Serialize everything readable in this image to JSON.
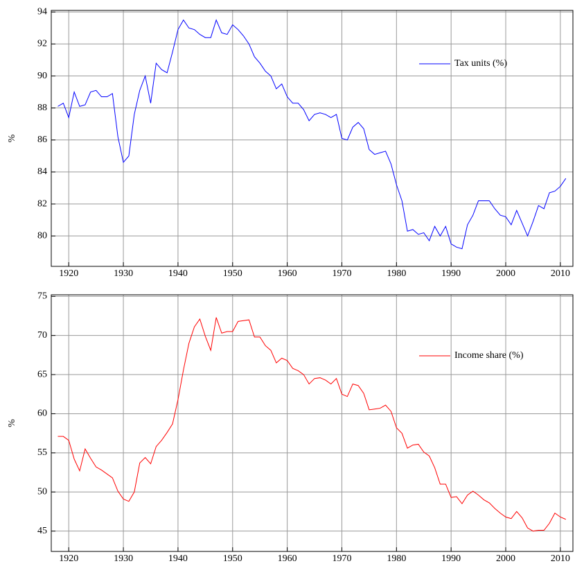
{
  "chart_data": [
    {
      "type": "line",
      "ylabel": "%",
      "x": [
        1918,
        1919,
        1920,
        1921,
        1922,
        1923,
        1924,
        1925,
        1926,
        1927,
        1928,
        1929,
        1930,
        1931,
        1932,
        1933,
        1934,
        1935,
        1936,
        1937,
        1938,
        1939,
        1940,
        1941,
        1942,
        1943,
        1944,
        1945,
        1946,
        1947,
        1948,
        1949,
        1950,
        1951,
        1952,
        1953,
        1954,
        1955,
        1956,
        1957,
        1958,
        1959,
        1960,
        1961,
        1962,
        1963,
        1964,
        1965,
        1966,
        1967,
        1968,
        1969,
        1970,
        1971,
        1972,
        1973,
        1974,
        1975,
        1976,
        1977,
        1978,
        1979,
        1980,
        1981,
        1982,
        1983,
        1984,
        1985,
        1986,
        1987,
        1988,
        1989,
        1990,
        1991,
        1992,
        1993,
        1994,
        1995,
        1996,
        1997,
        1998,
        1999,
        2000,
        2001,
        2002,
        2003,
        2004,
        2005,
        2006,
        2007,
        2008,
        2009,
        2010,
        2011
      ],
      "series": [
        {
          "name": "Tax units (%)",
          "color": "#0000ff",
          "values": [
            88.1,
            88.3,
            87.4,
            89.0,
            88.1,
            88.2,
            89.0,
            89.1,
            88.7,
            88.7,
            88.9,
            86.2,
            84.6,
            85.0,
            87.6,
            89.1,
            90.0,
            88.3,
            90.8,
            90.4,
            90.2,
            91.5,
            92.9,
            93.5,
            93.0,
            92.9,
            92.6,
            92.4,
            92.4,
            93.5,
            92.7,
            92.6,
            93.2,
            92.9,
            92.5,
            92.0,
            91.2,
            90.8,
            90.3,
            90.0,
            89.2,
            89.5,
            88.7,
            88.3,
            88.3,
            87.9,
            87.2,
            87.6,
            87.7,
            87.6,
            87.4,
            87.6,
            86.1,
            86.0,
            86.8,
            87.1,
            86.7,
            85.4,
            85.1,
            85.2,
            85.3,
            84.5,
            83.2,
            82.2,
            80.3,
            80.4,
            80.1,
            80.2,
            79.7,
            80.6,
            80.0,
            80.6,
            79.5,
            79.3,
            79.2,
            80.7,
            81.3,
            82.2,
            82.2,
            82.2,
            81.7,
            81.3,
            81.2,
            80.7,
            81.6,
            80.8,
            80.0,
            80.9,
            81.9,
            81.7,
            82.7,
            82.8,
            83.1,
            83.6
          ]
        }
      ],
      "xlim": [
        1916.8,
        2012.3
      ],
      "xticks": [
        1920,
        1930,
        1940,
        1950,
        1960,
        1970,
        1980,
        1990,
        2000,
        2010
      ],
      "ylim": [
        78.1,
        94.1
      ],
      "yticks": [
        80,
        82,
        84,
        86,
        88,
        90,
        92,
        94
      ],
      "grid": true
    },
    {
      "type": "line",
      "ylabel": "%",
      "x": [
        1918,
        1919,
        1920,
        1921,
        1922,
        1923,
        1924,
        1925,
        1926,
        1927,
        1928,
        1929,
        1930,
        1931,
        1932,
        1933,
        1934,
        1935,
        1936,
        1937,
        1938,
        1939,
        1940,
        1941,
        1942,
        1943,
        1944,
        1945,
        1946,
        1947,
        1948,
        1949,
        1950,
        1951,
        1952,
        1953,
        1954,
        1955,
        1956,
        1957,
        1958,
        1959,
        1960,
        1961,
        1962,
        1963,
        1964,
        1965,
        1966,
        1967,
        1968,
        1969,
        1970,
        1971,
        1972,
        1973,
        1974,
        1975,
        1976,
        1977,
        1978,
        1979,
        1980,
        1981,
        1982,
        1983,
        1984,
        1985,
        1986,
        1987,
        1988,
        1989,
        1990,
        1991,
        1992,
        1993,
        1994,
        1995,
        1996,
        1997,
        1998,
        1999,
        2000,
        2001,
        2002,
        2003,
        2004,
        2005,
        2006,
        2007,
        2008,
        2009,
        2010,
        2011
      ],
      "series": [
        {
          "name": "Income share (%)",
          "color": "#ff0000",
          "values": [
            57.1,
            57.1,
            56.6,
            54.2,
            52.7,
            55.5,
            54.3,
            53.2,
            52.8,
            52.3,
            51.8,
            50.1,
            49.1,
            48.8,
            50.0,
            53.7,
            54.4,
            53.6,
            55.8,
            56.6,
            57.6,
            58.7,
            61.8,
            65.6,
            69.0,
            71.1,
            72.1,
            69.9,
            68.1,
            72.3,
            70.3,
            70.5,
            70.5,
            71.8,
            71.9,
            72.0,
            69.8,
            69.8,
            68.7,
            68.1,
            66.5,
            67.1,
            66.8,
            65.8,
            65.5,
            65.0,
            63.8,
            64.5,
            64.6,
            64.3,
            63.8,
            64.5,
            62.5,
            62.2,
            63.8,
            63.6,
            62.6,
            60.5,
            60.6,
            60.7,
            61.1,
            60.3,
            58.2,
            57.5,
            55.6,
            56.0,
            56.1,
            55.1,
            54.6,
            53.1,
            51.0,
            51.0,
            49.3,
            49.4,
            48.5,
            49.6,
            50.1,
            49.6,
            49.0,
            48.6,
            47.9,
            47.3,
            46.8,
            46.6,
            47.5,
            46.7,
            45.4,
            45.0,
            45.1,
            45.1,
            46.0,
            47.3,
            46.8,
            46.5
          ]
        }
      ],
      "xlim": [
        1916.8,
        2012.3
      ],
      "xticks": [
        1920,
        1930,
        1940,
        1950,
        1960,
        1970,
        1980,
        1990,
        2000,
        2010
      ],
      "ylim": [
        42.4,
        75.2
      ],
      "yticks": [
        45,
        50,
        55,
        60,
        65,
        70,
        75
      ],
      "grid": true
    }
  ]
}
